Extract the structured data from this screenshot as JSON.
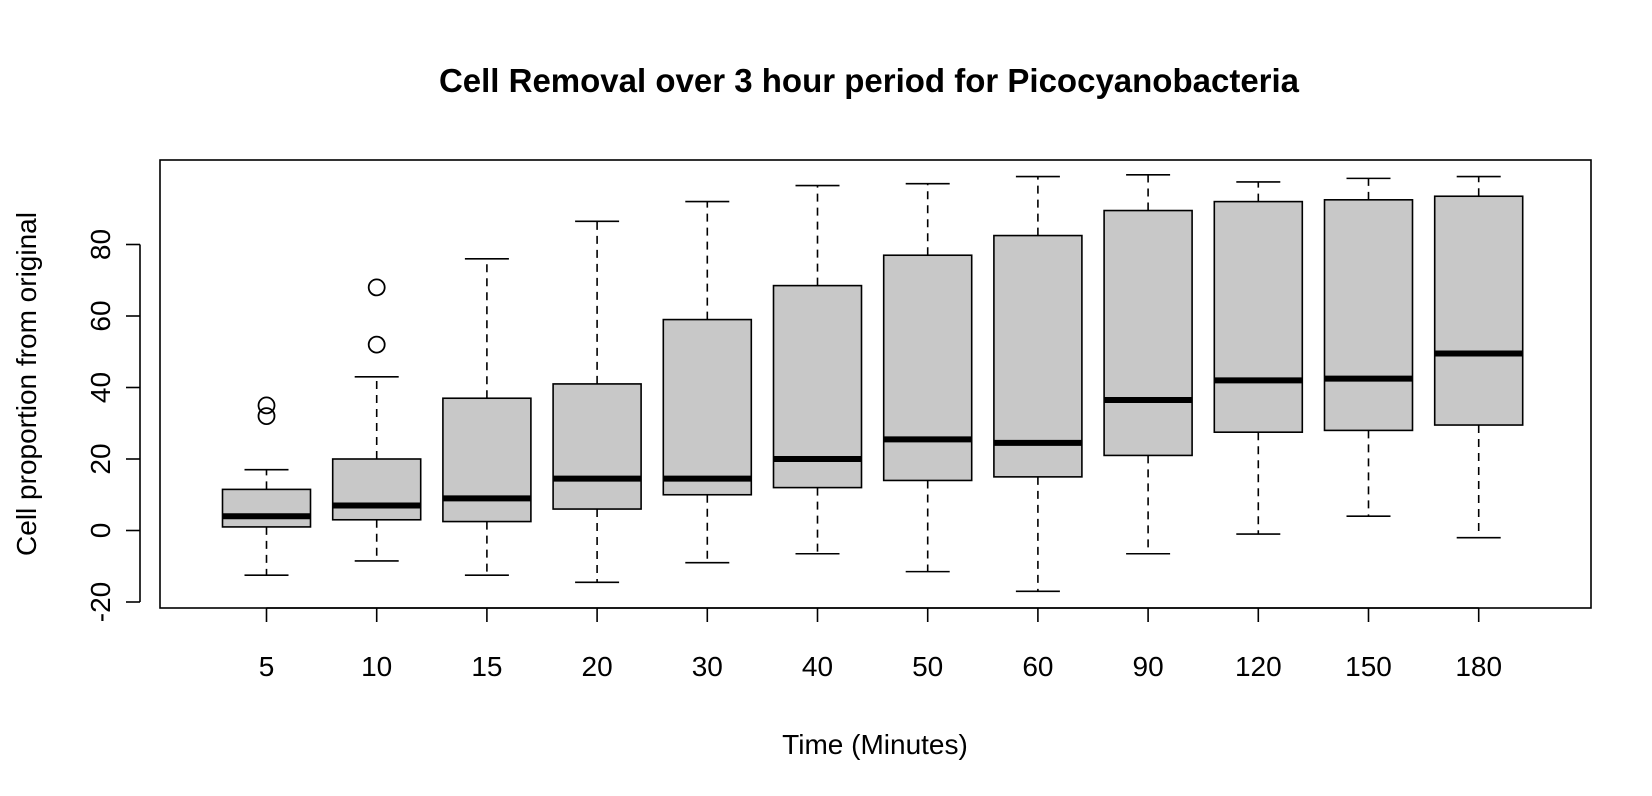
{
  "chart_data": {
    "type": "box",
    "title": "Cell Removal over 3 hour period for Picocyanobacteria",
    "xlabel": "Time (Minutes)",
    "ylabel": "Cell proportion from original",
    "ylim": [
      -22,
      100
    ],
    "yticks": [
      -20,
      0,
      20,
      40,
      60,
      80
    ],
    "categories": [
      "5",
      "10",
      "15",
      "20",
      "30",
      "40",
      "50",
      "60",
      "90",
      "120",
      "150",
      "180"
    ],
    "boxes": [
      {
        "whisker_low": -12.5,
        "q1": 1,
        "median": 4,
        "q3": 11.5,
        "whisker_high": 17,
        "outliers": [
          35,
          32
        ]
      },
      {
        "whisker_low": -8.5,
        "q1": 3,
        "median": 7,
        "q3": 20,
        "whisker_high": 43,
        "outliers": [
          68,
          52
        ]
      },
      {
        "whisker_low": -12.5,
        "q1": 2.5,
        "median": 9,
        "q3": 37,
        "whisker_high": 76,
        "outliers": []
      },
      {
        "whisker_low": -14.5,
        "q1": 6,
        "median": 14.5,
        "q3": 41,
        "whisker_high": 86.5,
        "outliers": []
      },
      {
        "whisker_low": -9,
        "q1": 10,
        "median": 14.5,
        "q3": 59,
        "whisker_high": 92,
        "outliers": []
      },
      {
        "whisker_low": -6.5,
        "q1": 12,
        "median": 20,
        "q3": 68.5,
        "whisker_high": 96.5,
        "outliers": []
      },
      {
        "whisker_low": -11.5,
        "q1": 14,
        "median": 25.5,
        "q3": 77,
        "whisker_high": 97,
        "outliers": []
      },
      {
        "whisker_low": -17,
        "q1": 15,
        "median": 24.5,
        "q3": 82.5,
        "whisker_high": 99,
        "outliers": []
      },
      {
        "whisker_low": -6.5,
        "q1": 21,
        "median": 36.5,
        "q3": 89.5,
        "whisker_high": 99.5,
        "outliers": []
      },
      {
        "whisker_low": -1,
        "q1": 27.5,
        "median": 42,
        "q3": 92,
        "whisker_high": 97.5,
        "outliers": []
      },
      {
        "whisker_low": 4,
        "q1": 28,
        "median": 42.5,
        "q3": 92.5,
        "whisker_high": 98.5,
        "outliers": []
      },
      {
        "whisker_low": -2,
        "q1": 29.5,
        "median": 49.5,
        "q3": 93.5,
        "whisker_high": 99,
        "outliers": []
      }
    ],
    "box_color": "#c8c8c8",
    "grid": false,
    "legend": "none"
  }
}
